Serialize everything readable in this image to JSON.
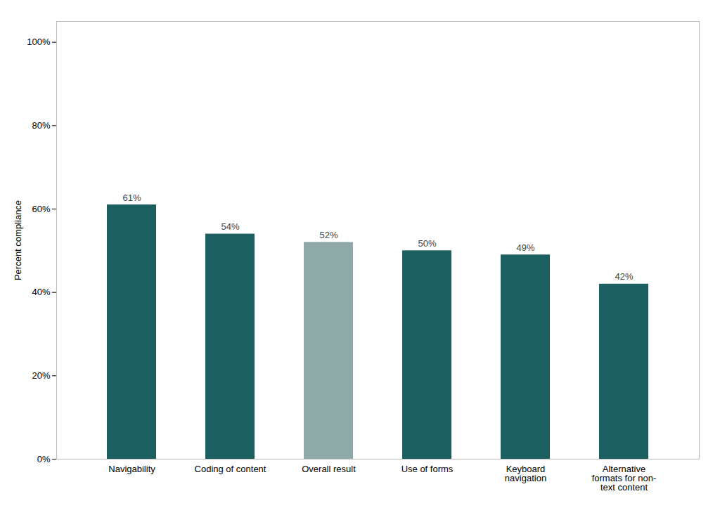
{
  "chart_data": {
    "type": "bar",
    "categories": [
      "Navigability",
      "Coding of content",
      "Overall result",
      "Use of forms",
      "Keyboard\nnavigation",
      "Alternative\nformats for non-\ntext content"
    ],
    "values": [
      0.61,
      0.54,
      0.52,
      0.5,
      0.49,
      0.42
    ],
    "value_labels": [
      "61%",
      "54%",
      "52%",
      "50%",
      "49%",
      "42%"
    ],
    "data_labels": true,
    "colors": [
      "#1c5f60",
      "#1c5f60",
      "#8fa8a8",
      "#1c5f60",
      "#1c5f60",
      "#1c5f60"
    ],
    "ylabel": "Percent compliance",
    "ylim": [
      0,
      1.05
    ],
    "yticks": [
      {
        "value": 0,
        "label": "0%"
      },
      {
        "value": 0.2,
        "label": "20%"
      },
      {
        "value": 0.4,
        "label": "40%"
      },
      {
        "value": 0.6,
        "label": "60%"
      },
      {
        "value": 0.8,
        "label": "80%"
      },
      {
        "value": 1.0,
        "label": "100%"
      }
    ],
    "grid": false
  }
}
